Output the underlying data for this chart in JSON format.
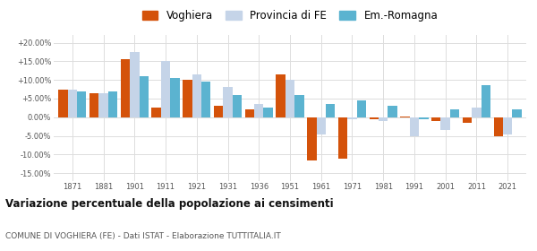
{
  "years": [
    1871,
    1881,
    1901,
    1911,
    1921,
    1931,
    1936,
    1951,
    1961,
    1971,
    1981,
    1991,
    2001,
    2011,
    2021
  ],
  "voghiera": [
    7.5,
    6.5,
    15.5,
    2.5,
    10.0,
    3.0,
    2.0,
    11.5,
    -11.5,
    -11.0,
    -0.5,
    0.3,
    -1.0,
    -1.5,
    -5.0
  ],
  "provincia_fe": [
    7.5,
    6.5,
    17.5,
    15.0,
    11.5,
    8.0,
    3.5,
    10.0,
    -4.5,
    -0.5,
    -1.0,
    -5.0,
    -3.5,
    2.5,
    -4.5
  ],
  "em_romagna": [
    7.0,
    7.0,
    11.0,
    10.5,
    9.5,
    6.0,
    2.5,
    6.0,
    3.5,
    4.5,
    3.0,
    -0.5,
    2.0,
    8.5,
    2.0
  ],
  "color_voghiera": "#d4520a",
  "color_provincia": "#c5d4e8",
  "color_emromagna": "#5bb3d0",
  "title": "Variazione percentuale della popolazione ai censimenti",
  "subtitle": "COMUNE DI VOGHIERA (FE) - Dati ISTAT - Elaborazione TUTTITALIA.IT",
  "yticks": [
    -15,
    -10,
    -5,
    0,
    5,
    10,
    15,
    20
  ],
  "ylim": [
    -17,
    22
  ],
  "background_color": "#ffffff",
  "grid_color": "#dddddd"
}
